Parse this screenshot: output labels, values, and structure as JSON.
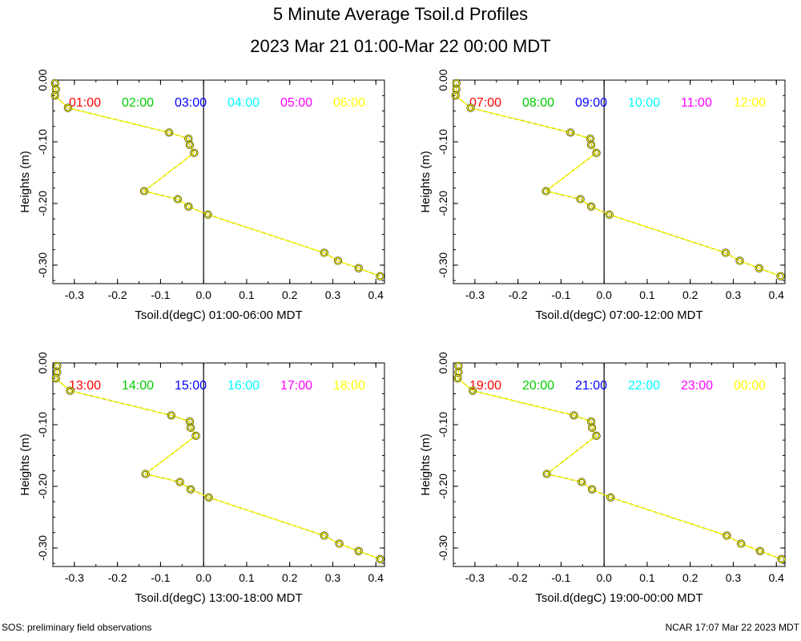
{
  "title": "5 Minute Average Tsoil.d Profiles",
  "subtitle": "2023 Mar 21 01:00-Mar 22 00:00 MDT",
  "footer": {
    "left": "SOS: preliminary field observations",
    "right": "NCAR 17:07 Mar 22 2023 MDT"
  },
  "colors": {
    "series": [
      "#ff0000",
      "#00cc00",
      "#0000ff",
      "#00ffff",
      "#ff00ff",
      "#ffff00"
    ],
    "axis": "#000000"
  },
  "chart_data": [
    {
      "type": "line",
      "xlabel": "Tsoil.d(degC) 01:00-06:00 MDT",
      "ylabel": "Heights (m)",
      "xlim": [
        -0.35,
        0.42
      ],
      "ylim": [
        -0.33,
        0.0
      ],
      "xticks": [
        "-0.3",
        "-0.2",
        "-0.1",
        "0.0",
        "0.1",
        "0.2",
        "0.3",
        "0.4"
      ],
      "yticks": [
        "0.00",
        "-0.10",
        "-0.20",
        "-0.30"
      ],
      "legend": [
        "01:00",
        "02:00",
        "03:00",
        "04:00",
        "05:00",
        "06:00"
      ],
      "depths": [
        -0.005,
        -0.015,
        -0.025,
        -0.045,
        -0.085,
        -0.095,
        -0.105,
        -0.118,
        -0.18,
        -0.193,
        -0.205,
        -0.218,
        -0.28,
        -0.293,
        -0.305,
        -0.318
      ],
      "temps": [
        -0.345,
        -0.343,
        -0.345,
        -0.315,
        -0.08,
        -0.035,
        -0.032,
        -0.022,
        -0.138,
        -0.06,
        -0.035,
        0.01,
        0.28,
        0.312,
        0.36,
        0.41
      ]
    },
    {
      "type": "line",
      "xlabel": "Tsoil.d(degC) 07:00-12:00 MDT",
      "ylabel": "Heights (m)",
      "xlim": [
        -0.35,
        0.42
      ],
      "ylim": [
        -0.33,
        0.0
      ],
      "xticks": [
        "-0.3",
        "-0.2",
        "-0.1",
        "0.0",
        "0.1",
        "0.2",
        "0.3",
        "0.4"
      ],
      "yticks": [
        "0.00",
        "-0.10",
        "-0.20",
        "-0.30"
      ],
      "legend": [
        "07:00",
        "08:00",
        "09:00",
        "10:00",
        "11:00",
        "12:00"
      ],
      "depths": [
        -0.005,
        -0.015,
        -0.025,
        -0.045,
        -0.085,
        -0.095,
        -0.105,
        -0.118,
        -0.18,
        -0.193,
        -0.205,
        -0.218,
        -0.28,
        -0.293,
        -0.305,
        -0.318
      ],
      "temps": [
        -0.343,
        -0.343,
        -0.345,
        -0.31,
        -0.078,
        -0.032,
        -0.03,
        -0.018,
        -0.135,
        -0.055,
        -0.03,
        0.012,
        0.282,
        0.315,
        0.36,
        0.41
      ]
    },
    {
      "type": "line",
      "xlabel": "Tsoil.d(degC) 13:00-18:00 MDT",
      "ylabel": "Heights (m)",
      "xlim": [
        -0.35,
        0.42
      ],
      "ylim": [
        -0.33,
        0.0
      ],
      "xticks": [
        "-0.3",
        "-0.2",
        "-0.1",
        "0.0",
        "0.1",
        "0.2",
        "0.3",
        "0.4"
      ],
      "yticks": [
        "0.00",
        "-0.10",
        "-0.20",
        "-0.30"
      ],
      "legend": [
        "13:00",
        "14:00",
        "15:00",
        "16:00",
        "17:00",
        "18:00"
      ],
      "depths": [
        -0.005,
        -0.015,
        -0.025,
        -0.045,
        -0.085,
        -0.095,
        -0.105,
        -0.118,
        -0.18,
        -0.193,
        -0.205,
        -0.218,
        -0.28,
        -0.293,
        -0.305,
        -0.318
      ],
      "temps": [
        -0.34,
        -0.34,
        -0.343,
        -0.31,
        -0.075,
        -0.032,
        -0.03,
        -0.018,
        -0.135,
        -0.055,
        -0.03,
        0.012,
        0.28,
        0.315,
        0.36,
        0.41
      ]
    },
    {
      "type": "line",
      "xlabel": "Tsoil.d(degC) 19:00-00:00 MDT",
      "ylabel": "Heights (m)",
      "xlim": [
        -0.35,
        0.42
      ],
      "ylim": [
        -0.33,
        0.0
      ],
      "xticks": [
        "-0.3",
        "-0.2",
        "-0.1",
        "0.0",
        "0.1",
        "0.2",
        "0.3",
        "0.4"
      ],
      "yticks": [
        "0.00",
        "-0.10",
        "-0.20",
        "-0.30"
      ],
      "legend": [
        "19:00",
        "20:00",
        "21:00",
        "22:00",
        "23:00",
        "00:00"
      ],
      "depths": [
        -0.005,
        -0.015,
        -0.025,
        -0.045,
        -0.085,
        -0.095,
        -0.105,
        -0.118,
        -0.18,
        -0.193,
        -0.205,
        -0.218,
        -0.28,
        -0.293,
        -0.305,
        -0.318
      ],
      "temps": [
        -0.338,
        -0.338,
        -0.34,
        -0.305,
        -0.07,
        -0.03,
        -0.028,
        -0.018,
        -0.133,
        -0.052,
        -0.028,
        0.015,
        0.285,
        0.318,
        0.362,
        0.412
      ]
    }
  ]
}
